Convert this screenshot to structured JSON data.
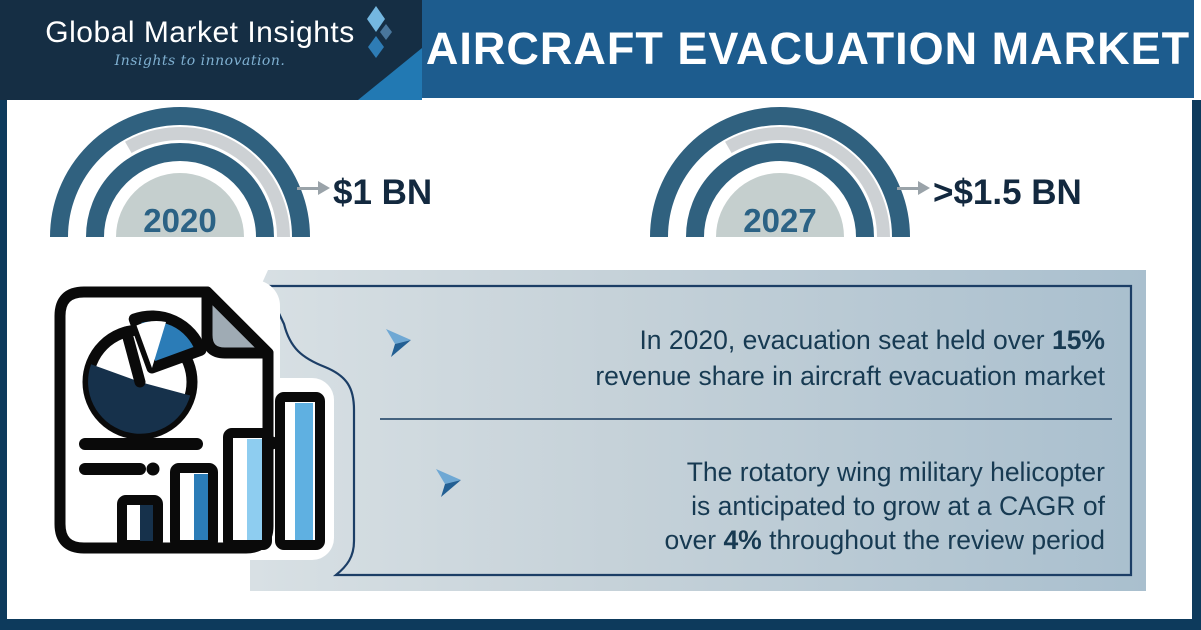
{
  "header": {
    "logo": {
      "name": "Global Market Insights",
      "tagline": "Insights to innovation."
    },
    "title": "AIRCRAFT EVACUATION MARKET"
  },
  "stats": [
    {
      "year": "2020",
      "value": "$1 BN"
    },
    {
      "year": "2027",
      "value": ">$1.5 BN"
    }
  ],
  "panel": {
    "bullets": [
      {
        "lines": [
          [
            {
              "t": "In 2020, evacuation seat held over ",
              "b": false
            },
            {
              "t": "15%",
              "b": true
            }
          ],
          [
            {
              "t": "revenue share in aircraft evacuation market",
              "b": false
            }
          ]
        ]
      },
      {
        "lines": [
          [
            {
              "t": "The rotatory wing military helicopter",
              "b": false
            }
          ],
          [
            {
              "t": "is anticipated to grow at a CAGR of",
              "b": false
            }
          ],
          [
            {
              "t": "over ",
              "b": false
            },
            {
              "t": "4%",
              "b": true
            },
            {
              "t": " throughout the review period",
              "b": false
            }
          ]
        ]
      }
    ]
  },
  "colors": {
    "header_navy": "#152e44",
    "title_blue": "#1d5c8e",
    "frame_navy": "#0d3a5c",
    "arc_dark": "#30617f",
    "arc_gray": "#cdd1d4",
    "gauge_fill": "#c5cfce",
    "year_text": "#2b6285",
    "value_text": "#13293f",
    "panel_gradient_left": "#d8e0e4",
    "panel_gradient_right": "#a9bfce",
    "panel_outline": "#1c3e66",
    "body_text": "#173a52",
    "icon_navy": "#16314b",
    "accent_blue": "#2b7cb7",
    "accent_light_blue": "#8ecdf0"
  }
}
